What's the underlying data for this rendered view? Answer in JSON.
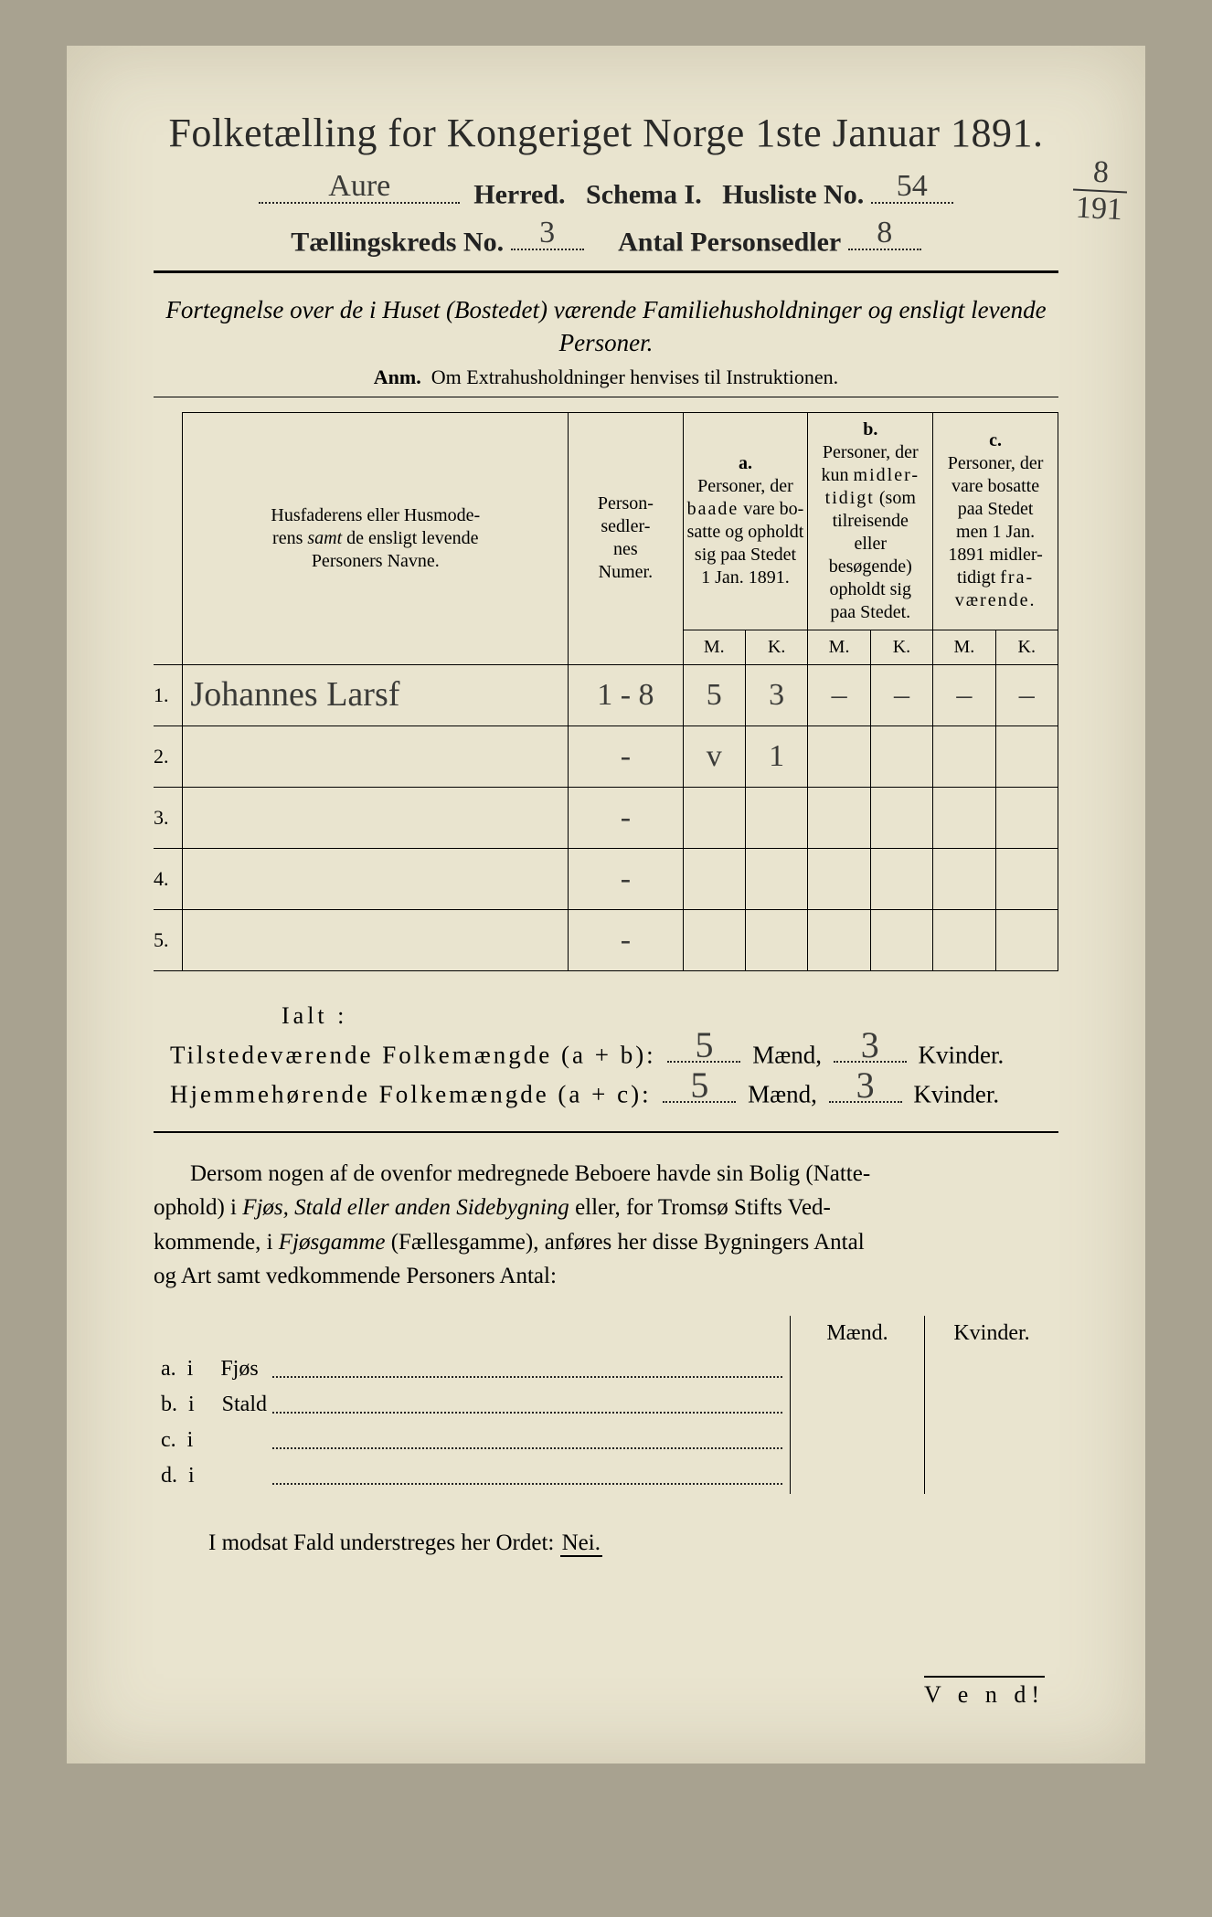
{
  "colors": {
    "paper_bg": "#e9e4cf",
    "outer_bg": "#a8a290",
    "ink": "#2a2a28",
    "rule": "#000000",
    "handwriting": "#3b3b38"
  },
  "typography": {
    "title_fontsize": 44,
    "body_fontsize": 25,
    "table_fontsize": 20,
    "hand_fontsize": 36,
    "font_family_print": "Times New Roman / serif",
    "font_family_hand": "cursive script"
  },
  "header": {
    "title": "Folketælling for Kongeriget Norge 1ste Januar 1891.",
    "herred_label": "Herred.",
    "herred_value": "Aure",
    "schema_label": "Schema I.",
    "husliste_label": "Husliste No.",
    "husliste_value": "54",
    "kreds_label": "Tællingskreds No.",
    "kreds_value": "3",
    "personsedler_label": "Antal Personsedler",
    "personsedler_value": "8",
    "margin_fraction_top": "8",
    "margin_fraction_bottom": "191"
  },
  "subtitle": {
    "line": "Fortegnelse over de i Huset (Bostedet) værende Familiehusholdninger og ensligt levende Personer.",
    "anm": "Anm.  Om Extrahusholdninger henvises til Instruktionen."
  },
  "table": {
    "col_names": "Husfaderens eller Husmoderens samt de ensligt levende Personers Navne.",
    "col_nums": "Person-\nsedler-\nnes\nNumer.",
    "group_a_letter": "a.",
    "group_a": "Personer, der b a a d e vare bosatte og opholdt sig paa Stedet 1 Jan. 1891.",
    "group_b_letter": "b.",
    "group_b": "Personer, der kun m i d l e r-\nt i d i g t (som tilreisende eller besøgende) opholdt sig paa Stedet.",
    "group_c_letter": "c.",
    "group_c": "Personer, der vare bosatte paa Stedet men 1 Jan. 1891 midler-\ntidigt f r a-\nv æ r e n d e.",
    "mk_M": "M.",
    "mk_K": "K.",
    "rows": [
      {
        "n": "1.",
        "name": "Johannes Larsf",
        "nums": "1 - 8",
        "aM": "5",
        "aK": "3",
        "bM": "–",
        "bK": "–",
        "cM": "–",
        "cK": "–"
      },
      {
        "n": "2.",
        "name": "",
        "nums": "-",
        "aM": "v",
        "aK": "1",
        "bM": "",
        "bK": "",
        "cM": "",
        "cK": ""
      },
      {
        "n": "3.",
        "name": "",
        "nums": "-",
        "aM": "",
        "aK": "",
        "bM": "",
        "bK": "",
        "cM": "",
        "cK": ""
      },
      {
        "n": "4.",
        "name": "",
        "nums": "-",
        "aM": "",
        "aK": "",
        "bM": "",
        "bK": "",
        "cM": "",
        "cK": ""
      },
      {
        "n": "5.",
        "name": "",
        "nums": "-",
        "aM": "",
        "aK": "",
        "bM": "",
        "bK": "",
        "cM": "",
        "cK": ""
      }
    ]
  },
  "totals": {
    "ialt_label": "Ialt :",
    "line1_label": "Tilstedeværende Folkemængde (a + b):",
    "line2_label": "Hjemmehørende Folkemængde (a + c):",
    "maend_label": "Mænd,",
    "kvinder_label": "Kvinder.",
    "line1_m": "5",
    "line1_k": "3",
    "line2_m": "5",
    "line2_k": "3"
  },
  "paragraph": "Dersom nogen af de ovenfor medregnede Beboere havde sin Bolig (Natte-ophold) i Fjøs, Stald eller anden Sidebygning eller, for Tromsø Stifts Vedkommende, i Fjøsgamme (Fællesgamme), anføres her disse Bygningers Antal og Art samt vedkommende Personers Antal:",
  "mini": {
    "col_m": "Mænd.",
    "col_k": "Kvinder.",
    "rows": [
      {
        "lbl": "a.  i     Fjøs"
      },
      {
        "lbl": "b.  i     Stald"
      },
      {
        "lbl": "c.  i"
      },
      {
        "lbl": "d.  i"
      }
    ]
  },
  "nei_line": "I modsat Fald understreges her Ordet:",
  "nei_word": "Nei.",
  "vend": "V e n d!"
}
